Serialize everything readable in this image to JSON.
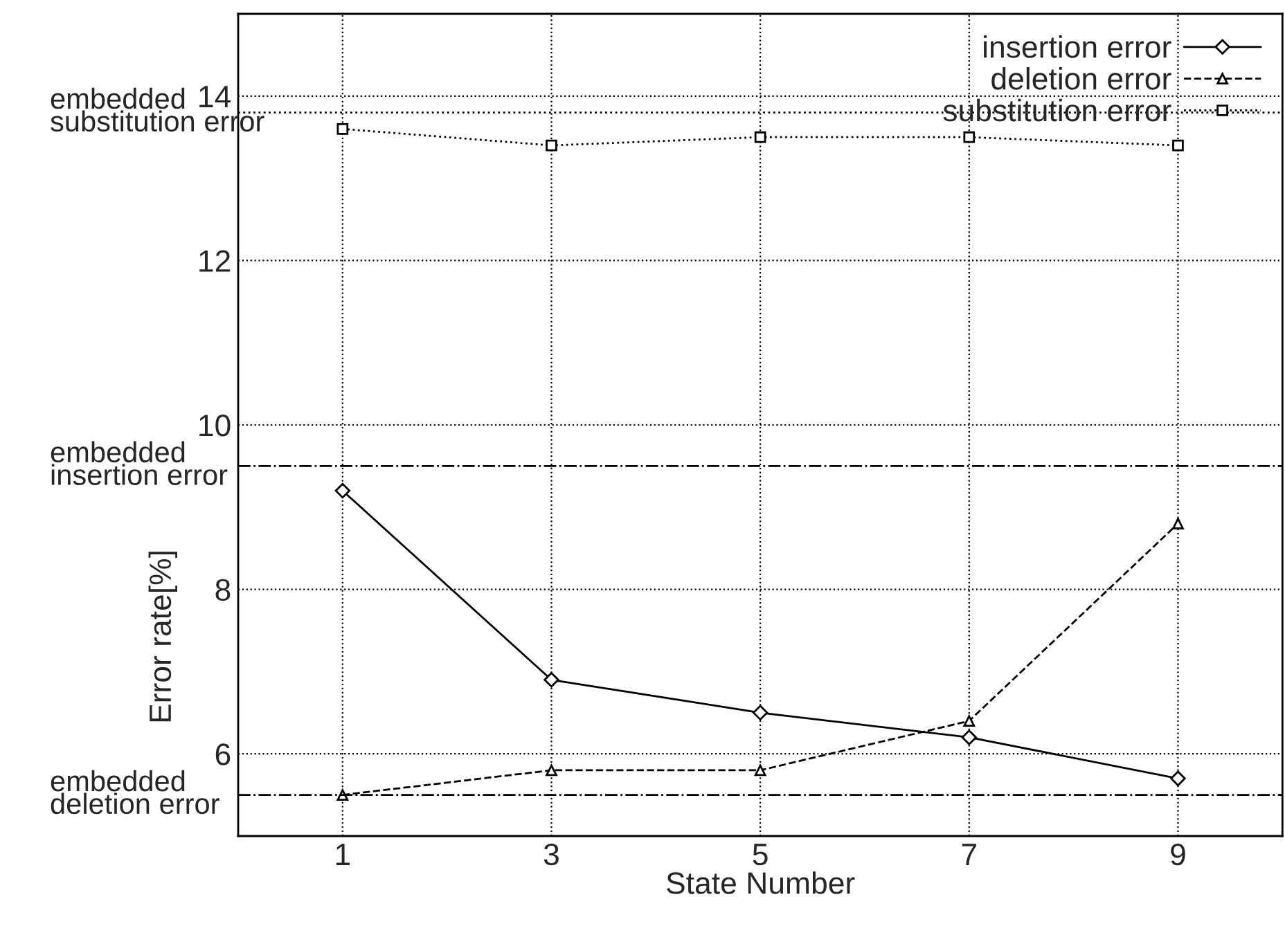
{
  "chart_data": {
    "type": "line",
    "xlabel": "State Number",
    "ylabel": "Error rate[%]",
    "x": [
      1,
      3,
      5,
      7,
      9
    ],
    "xlim": [
      0,
      10
    ],
    "xticks": [
      1,
      3,
      5,
      7,
      9
    ],
    "ylim": [
      5,
      15
    ],
    "yticks": [
      6,
      8,
      10,
      12,
      14
    ],
    "series": [
      {
        "name": "insertion error",
        "color": "#000000",
        "values": [
          9.2,
          6.9,
          6.5,
          6.2,
          5.7
        ],
        "marker": "diamond",
        "line_style": "solid"
      },
      {
        "name": "deletion error",
        "color": "#000000",
        "values": [
          5.5,
          5.8,
          5.8,
          6.4,
          8.8
        ],
        "marker": "triangle",
        "line_style": "dashed"
      },
      {
        "name": "substitution error",
        "color": "#000000",
        "values": [
          13.6,
          13.4,
          13.5,
          13.5,
          13.4
        ],
        "marker": "square",
        "line_style": "dotted"
      }
    ],
    "ref_lines": [
      {
        "axis": "y",
        "value": 13.8,
        "label": "embedded\nsubstitution error",
        "line_style": "dotted",
        "color": "#000000"
      },
      {
        "axis": "y",
        "value": 9.5,
        "label": "embedded\ninsertion error",
        "line_style": "dashdot",
        "color": "#000000"
      },
      {
        "axis": "y",
        "value": 5.5,
        "label": "embedded\ndeletion error",
        "line_style": "dashdot",
        "color": "#000000"
      }
    ],
    "grid": true,
    "legend": "top right"
  }
}
